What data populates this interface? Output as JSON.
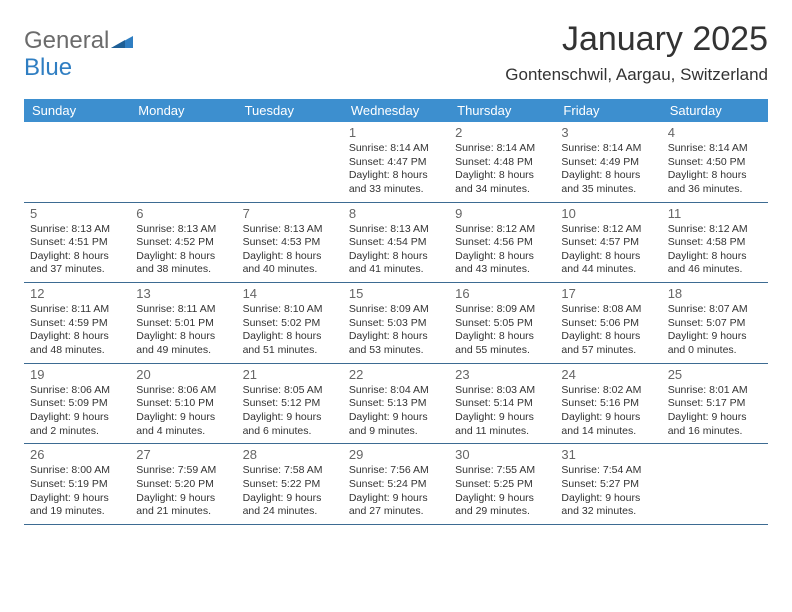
{
  "brand": {
    "part1": "General",
    "part2": "Blue",
    "color_general": "#6b6b6b",
    "color_blue": "#2f7ec2",
    "shape_color": "#2f7ec2"
  },
  "header": {
    "month_title": "January 2025",
    "location": "Gontenschwil, Aargau, Switzerland"
  },
  "colors": {
    "header_bg": "#3d8fcf",
    "header_text": "#ffffff",
    "rule": "#3d6b92",
    "daynum": "#666666",
    "body_text": "#333333",
    "background": "#ffffff"
  },
  "typography": {
    "month_title_size": 34,
    "location_size": 17,
    "weekday_size": 13,
    "daynum_size": 13,
    "body_size": 10.5
  },
  "weekdays": [
    "Sunday",
    "Monday",
    "Tuesday",
    "Wednesday",
    "Thursday",
    "Friday",
    "Saturday"
  ],
  "weeks": [
    [
      null,
      null,
      null,
      {
        "n": "1",
        "sr": "8:14 AM",
        "ss": "4:47 PM",
        "dh": "8",
        "dm": "33"
      },
      {
        "n": "2",
        "sr": "8:14 AM",
        "ss": "4:48 PM",
        "dh": "8",
        "dm": "34"
      },
      {
        "n": "3",
        "sr": "8:14 AM",
        "ss": "4:49 PM",
        "dh": "8",
        "dm": "35"
      },
      {
        "n": "4",
        "sr": "8:14 AM",
        "ss": "4:50 PM",
        "dh": "8",
        "dm": "36"
      }
    ],
    [
      {
        "n": "5",
        "sr": "8:13 AM",
        "ss": "4:51 PM",
        "dh": "8",
        "dm": "37"
      },
      {
        "n": "6",
        "sr": "8:13 AM",
        "ss": "4:52 PM",
        "dh": "8",
        "dm": "38"
      },
      {
        "n": "7",
        "sr": "8:13 AM",
        "ss": "4:53 PM",
        "dh": "8",
        "dm": "40"
      },
      {
        "n": "8",
        "sr": "8:13 AM",
        "ss": "4:54 PM",
        "dh": "8",
        "dm": "41"
      },
      {
        "n": "9",
        "sr": "8:12 AM",
        "ss": "4:56 PM",
        "dh": "8",
        "dm": "43"
      },
      {
        "n": "10",
        "sr": "8:12 AM",
        "ss": "4:57 PM",
        "dh": "8",
        "dm": "44"
      },
      {
        "n": "11",
        "sr": "8:12 AM",
        "ss": "4:58 PM",
        "dh": "8",
        "dm": "46"
      }
    ],
    [
      {
        "n": "12",
        "sr": "8:11 AM",
        "ss": "4:59 PM",
        "dh": "8",
        "dm": "48"
      },
      {
        "n": "13",
        "sr": "8:11 AM",
        "ss": "5:01 PM",
        "dh": "8",
        "dm": "49"
      },
      {
        "n": "14",
        "sr": "8:10 AM",
        "ss": "5:02 PM",
        "dh": "8",
        "dm": "51"
      },
      {
        "n": "15",
        "sr": "8:09 AM",
        "ss": "5:03 PM",
        "dh": "8",
        "dm": "53"
      },
      {
        "n": "16",
        "sr": "8:09 AM",
        "ss": "5:05 PM",
        "dh": "8",
        "dm": "55"
      },
      {
        "n": "17",
        "sr": "8:08 AM",
        "ss": "5:06 PM",
        "dh": "8",
        "dm": "57"
      },
      {
        "n": "18",
        "sr": "8:07 AM",
        "ss": "5:07 PM",
        "dh": "9",
        "dm": "0"
      }
    ],
    [
      {
        "n": "19",
        "sr": "8:06 AM",
        "ss": "5:09 PM",
        "dh": "9",
        "dm": "2"
      },
      {
        "n": "20",
        "sr": "8:06 AM",
        "ss": "5:10 PM",
        "dh": "9",
        "dm": "4"
      },
      {
        "n": "21",
        "sr": "8:05 AM",
        "ss": "5:12 PM",
        "dh": "9",
        "dm": "6"
      },
      {
        "n": "22",
        "sr": "8:04 AM",
        "ss": "5:13 PM",
        "dh": "9",
        "dm": "9"
      },
      {
        "n": "23",
        "sr": "8:03 AM",
        "ss": "5:14 PM",
        "dh": "9",
        "dm": "11"
      },
      {
        "n": "24",
        "sr": "8:02 AM",
        "ss": "5:16 PM",
        "dh": "9",
        "dm": "14"
      },
      {
        "n": "25",
        "sr": "8:01 AM",
        "ss": "5:17 PM",
        "dh": "9",
        "dm": "16"
      }
    ],
    [
      {
        "n": "26",
        "sr": "8:00 AM",
        "ss": "5:19 PM",
        "dh": "9",
        "dm": "19"
      },
      {
        "n": "27",
        "sr": "7:59 AM",
        "ss": "5:20 PM",
        "dh": "9",
        "dm": "21"
      },
      {
        "n": "28",
        "sr": "7:58 AM",
        "ss": "5:22 PM",
        "dh": "9",
        "dm": "24"
      },
      {
        "n": "29",
        "sr": "7:56 AM",
        "ss": "5:24 PM",
        "dh": "9",
        "dm": "27"
      },
      {
        "n": "30",
        "sr": "7:55 AM",
        "ss": "5:25 PM",
        "dh": "9",
        "dm": "29"
      },
      {
        "n": "31",
        "sr": "7:54 AM",
        "ss": "5:27 PM",
        "dh": "9",
        "dm": "32"
      },
      null
    ]
  ],
  "labels": {
    "sunrise": "Sunrise:",
    "sunset": "Sunset:",
    "daylight": "Daylight:",
    "hours_word": "hours",
    "and_word": "and",
    "minutes_word": "minutes."
  }
}
